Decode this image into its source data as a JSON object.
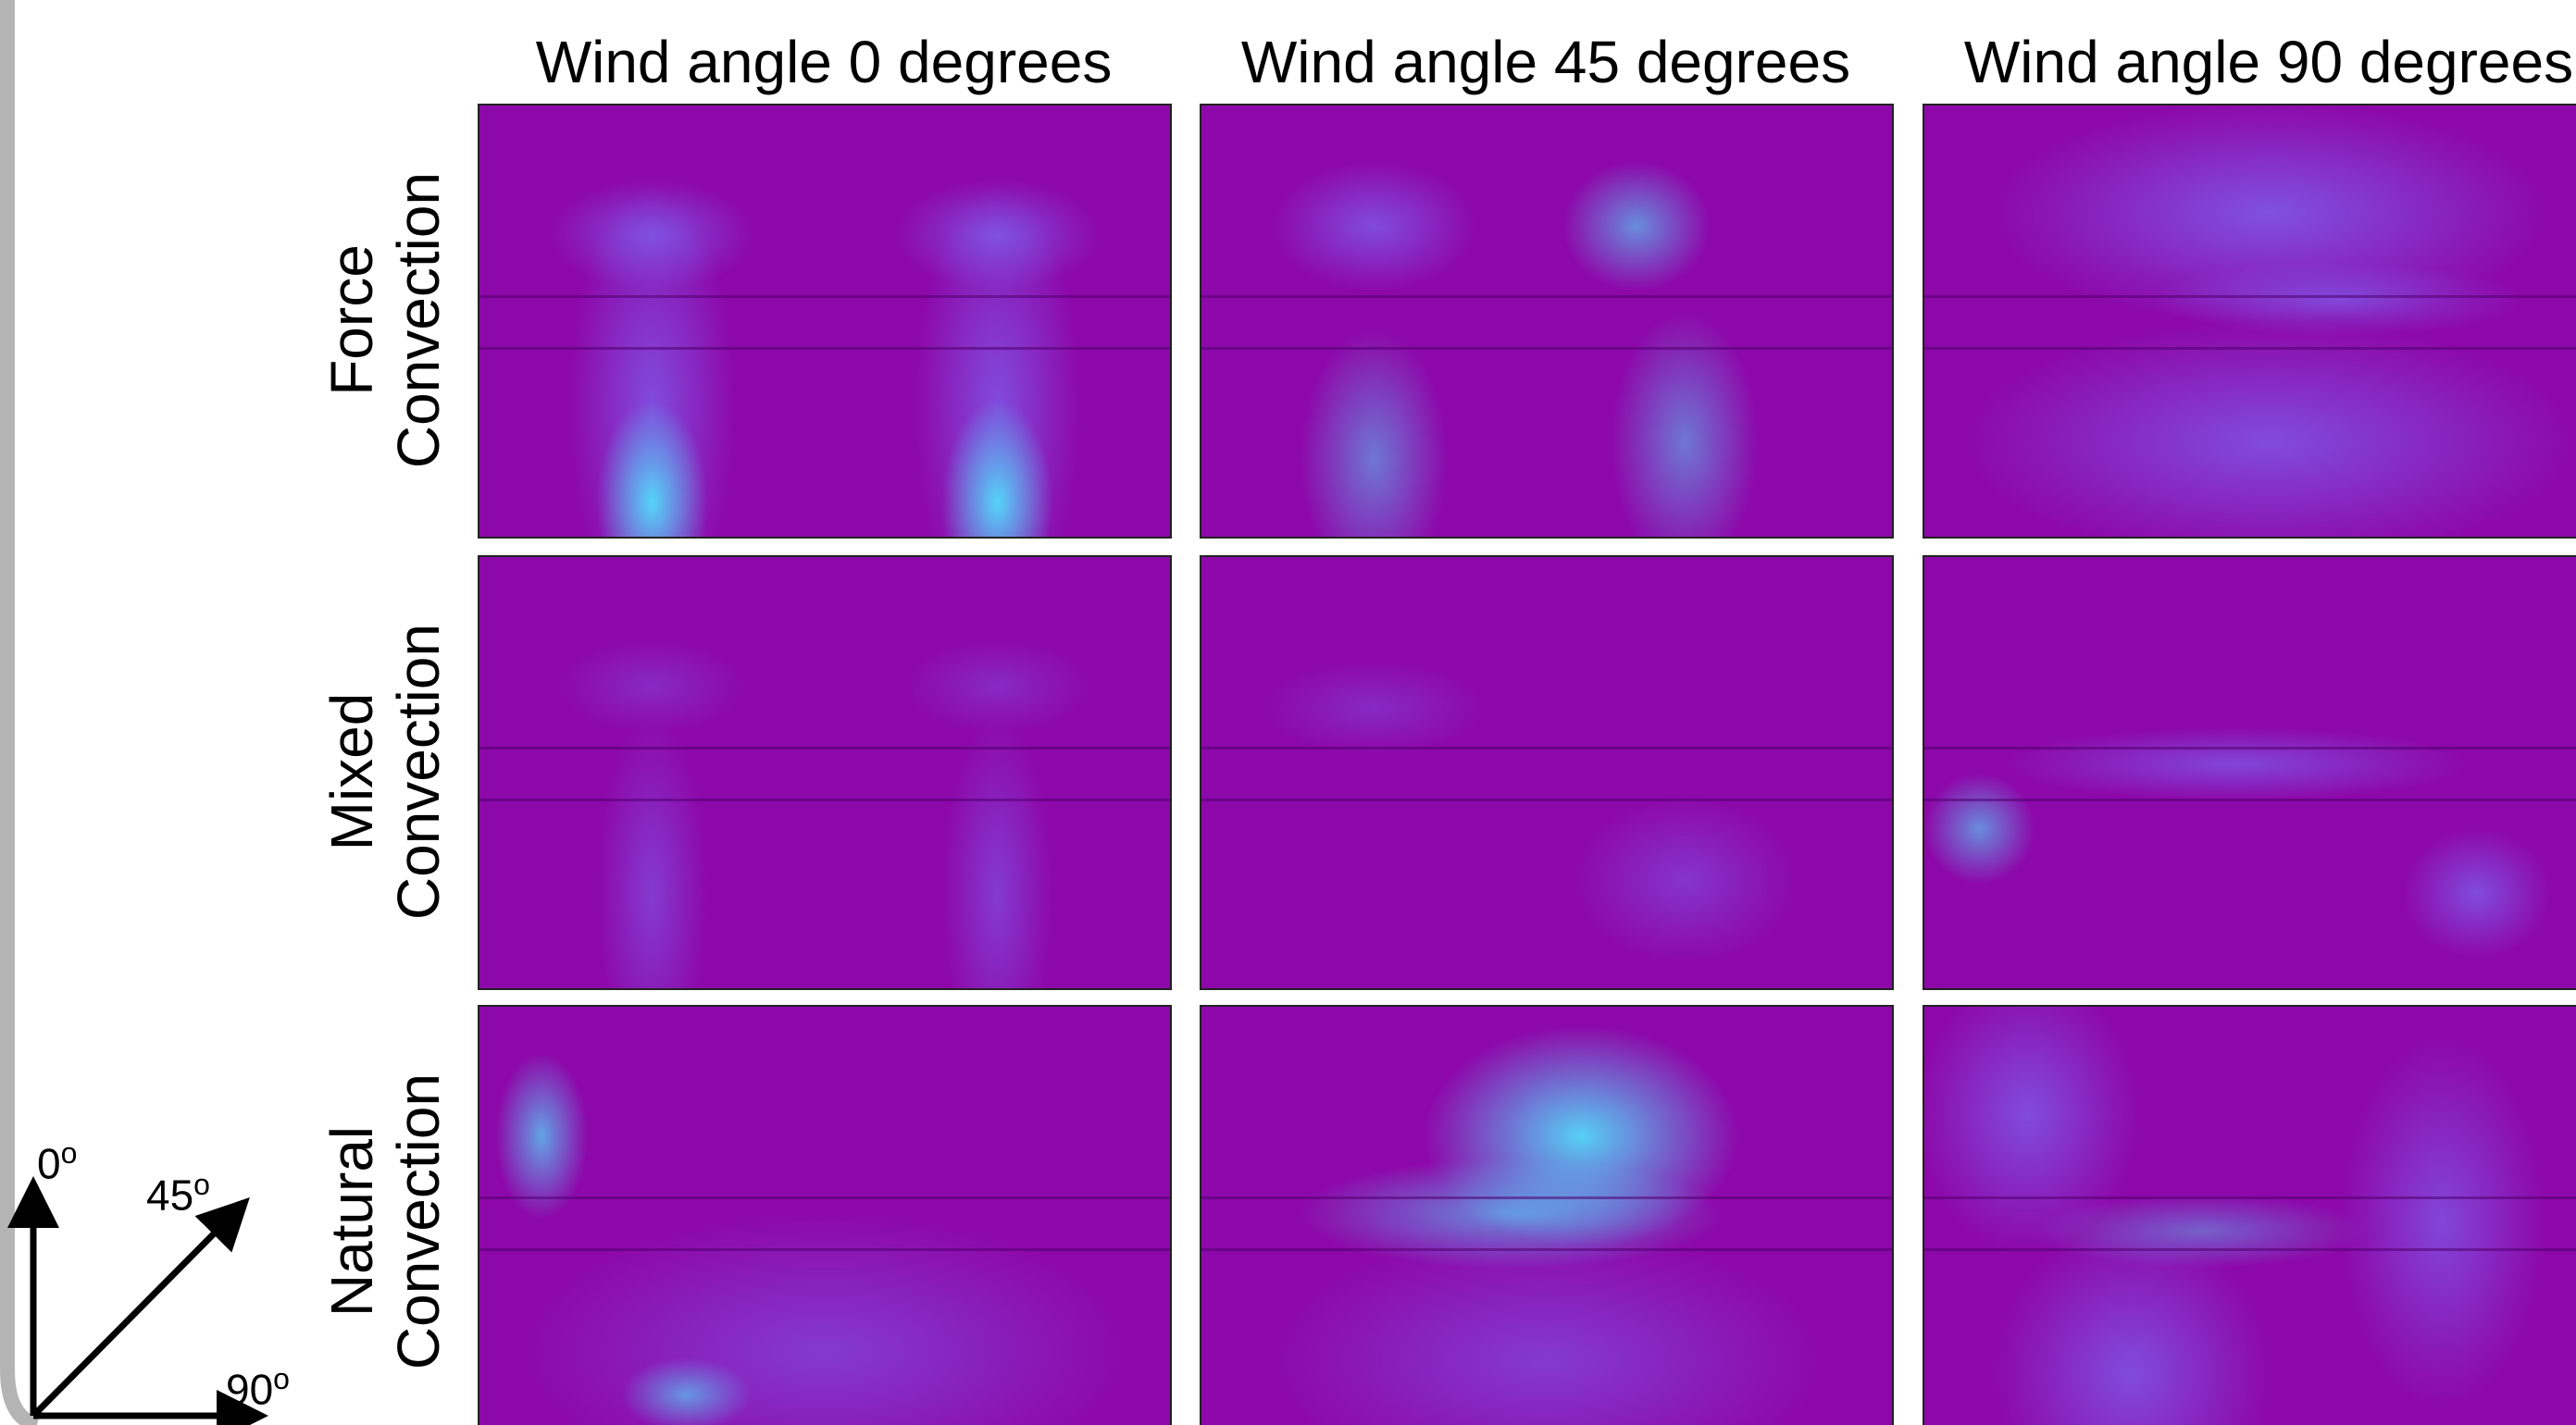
{
  "columns": [
    "Wind angle 0 degrees",
    "Wind angle 45 degrees",
    "Wind angle 90 degrees"
  ],
  "rows": [
    {
      "line1": "Force",
      "line2": "Convection"
    },
    {
      "line1": "Mixed",
      "line2": "Convection"
    },
    {
      "line1": "Natural",
      "line2": "Convection"
    }
  ],
  "angles": [
    {
      "value": "0",
      "sup": "o"
    },
    {
      "value": "45",
      "sup": "o"
    },
    {
      "value": "90",
      "sup": "o"
    }
  ]
}
